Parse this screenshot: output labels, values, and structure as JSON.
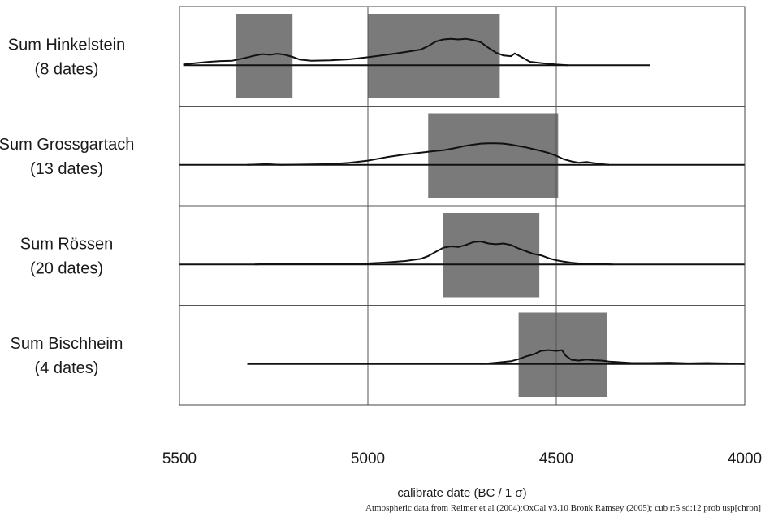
{
  "chart_data": {
    "type": "area",
    "xlabel": "calibrate date (BC / 1 σ)",
    "xlim": [
      5500,
      4000
    ],
    "x_reversed": true,
    "xticks": [
      5500,
      5000,
      4500,
      4000
    ],
    "xtick_labels": [
      "5500",
      "5000",
      "4500",
      "4000"
    ],
    "grid_x": true,
    "credit": "Atmospheric data from Reimer et al (2004);OxCal v3.10 Bronk Ramsey (2005); cub r:5 sd:12 prob usp[chron]",
    "series": [
      {
        "name": "Sum Hinkelstein",
        "count": "(8 dates)",
        "range": [
          5490,
          4250
        ],
        "sigma_ranges": [
          [
            5350,
            5200
          ],
          [
            5000,
            4650
          ]
        ],
        "density": [
          [
            5490,
            0.02
          ],
          [
            5460,
            0.06
          ],
          [
            5420,
            0.1
          ],
          [
            5390,
            0.12
          ],
          [
            5360,
            0.13
          ],
          [
            5330,
            0.2
          ],
          [
            5300,
            0.28
          ],
          [
            5280,
            0.32
          ],
          [
            5260,
            0.3
          ],
          [
            5240,
            0.33
          ],
          [
            5220,
            0.3
          ],
          [
            5200,
            0.24
          ],
          [
            5180,
            0.16
          ],
          [
            5150,
            0.13
          ],
          [
            5100,
            0.14
          ],
          [
            5050,
            0.17
          ],
          [
            5000,
            0.23
          ],
          [
            4950,
            0.3
          ],
          [
            4900,
            0.38
          ],
          [
            4860,
            0.45
          ],
          [
            4840,
            0.55
          ],
          [
            4820,
            0.68
          ],
          [
            4800,
            0.74
          ],
          [
            4780,
            0.76
          ],
          [
            4760,
            0.74
          ],
          [
            4740,
            0.76
          ],
          [
            4720,
            0.72
          ],
          [
            4700,
            0.66
          ],
          [
            4680,
            0.5
          ],
          [
            4660,
            0.36
          ],
          [
            4640,
            0.28
          ],
          [
            4620,
            0.26
          ],
          [
            4610,
            0.34
          ],
          [
            4590,
            0.22
          ],
          [
            4570,
            0.1
          ],
          [
            4530,
            0.05
          ],
          [
            4500,
            0.02
          ],
          [
            4470,
            0.0
          ]
        ]
      },
      {
        "name": "Sum Grossgartach",
        "count": "(13 dates)",
        "range": [
          5500,
          4000
        ],
        "sigma_ranges": [
          [
            4840,
            4495
          ]
        ],
        "density": [
          [
            5320,
            0.0
          ],
          [
            5270,
            0.02
          ],
          [
            5230,
            0.0
          ],
          [
            5100,
            0.02
          ],
          [
            5050,
            0.06
          ],
          [
            5000,
            0.12
          ],
          [
            4950,
            0.22
          ],
          [
            4900,
            0.3
          ],
          [
            4850,
            0.36
          ],
          [
            4820,
            0.4
          ],
          [
            4800,
            0.42
          ],
          [
            4780,
            0.46
          ],
          [
            4760,
            0.5
          ],
          [
            4740,
            0.55
          ],
          [
            4720,
            0.58
          ],
          [
            4700,
            0.61
          ],
          [
            4680,
            0.62
          ],
          [
            4660,
            0.62
          ],
          [
            4640,
            0.61
          ],
          [
            4620,
            0.58
          ],
          [
            4600,
            0.54
          ],
          [
            4580,
            0.5
          ],
          [
            4560,
            0.45
          ],
          [
            4540,
            0.4
          ],
          [
            4520,
            0.34
          ],
          [
            4500,
            0.26
          ],
          [
            4480,
            0.16
          ],
          [
            4460,
            0.1
          ],
          [
            4440,
            0.06
          ],
          [
            4420,
            0.08
          ],
          [
            4400,
            0.05
          ],
          [
            4380,
            0.02
          ],
          [
            4360,
            0.0
          ]
        ]
      },
      {
        "name": "Sum Rössen",
        "count": "(20 dates)",
        "range": [
          5500,
          4000
        ],
        "sigma_ranges": [
          [
            4800,
            4545
          ]
        ],
        "density": [
          [
            5300,
            0.0
          ],
          [
            5250,
            0.02
          ],
          [
            5150,
            0.02
          ],
          [
            5050,
            0.02
          ],
          [
            5000,
            0.03
          ],
          [
            4950,
            0.06
          ],
          [
            4900,
            0.1
          ],
          [
            4860,
            0.16
          ],
          [
            4840,
            0.24
          ],
          [
            4820,
            0.36
          ],
          [
            4800,
            0.48
          ],
          [
            4780,
            0.52
          ],
          [
            4760,
            0.5
          ],
          [
            4740,
            0.56
          ],
          [
            4720,
            0.64
          ],
          [
            4700,
            0.66
          ],
          [
            4680,
            0.6
          ],
          [
            4660,
            0.58
          ],
          [
            4640,
            0.6
          ],
          [
            4620,
            0.56
          ],
          [
            4600,
            0.46
          ],
          [
            4580,
            0.38
          ],
          [
            4560,
            0.3
          ],
          [
            4540,
            0.26
          ],
          [
            4520,
            0.18
          ],
          [
            4500,
            0.12
          ],
          [
            4480,
            0.08
          ],
          [
            4460,
            0.05
          ],
          [
            4440,
            0.03
          ],
          [
            4400,
            0.02
          ],
          [
            4380,
            0.01
          ],
          [
            4350,
            0.0
          ]
        ]
      },
      {
        "name": "Sum Bischheim",
        "count": "(4 dates)",
        "range": [
          5320,
          4000
        ],
        "sigma_ranges": [
          [
            4600,
            4365
          ]
        ],
        "density": [
          [
            4700,
            0.0
          ],
          [
            4660,
            0.04
          ],
          [
            4620,
            0.08
          ],
          [
            4600,
            0.14
          ],
          [
            4580,
            0.22
          ],
          [
            4560,
            0.28
          ],
          [
            4540,
            0.38
          ],
          [
            4520,
            0.4
          ],
          [
            4500,
            0.38
          ],
          [
            4485,
            0.4
          ],
          [
            4475,
            0.24
          ],
          [
            4460,
            0.12
          ],
          [
            4440,
            0.1
          ],
          [
            4420,
            0.13
          ],
          [
            4400,
            0.11
          ],
          [
            4380,
            0.1
          ],
          [
            4360,
            0.07
          ],
          [
            4330,
            0.05
          ],
          [
            4300,
            0.03
          ],
          [
            4250,
            0.03
          ],
          [
            4200,
            0.04
          ],
          [
            4150,
            0.02
          ],
          [
            4100,
            0.03
          ],
          [
            4050,
            0.02
          ],
          [
            4000,
            0.0
          ]
        ]
      }
    ]
  }
}
